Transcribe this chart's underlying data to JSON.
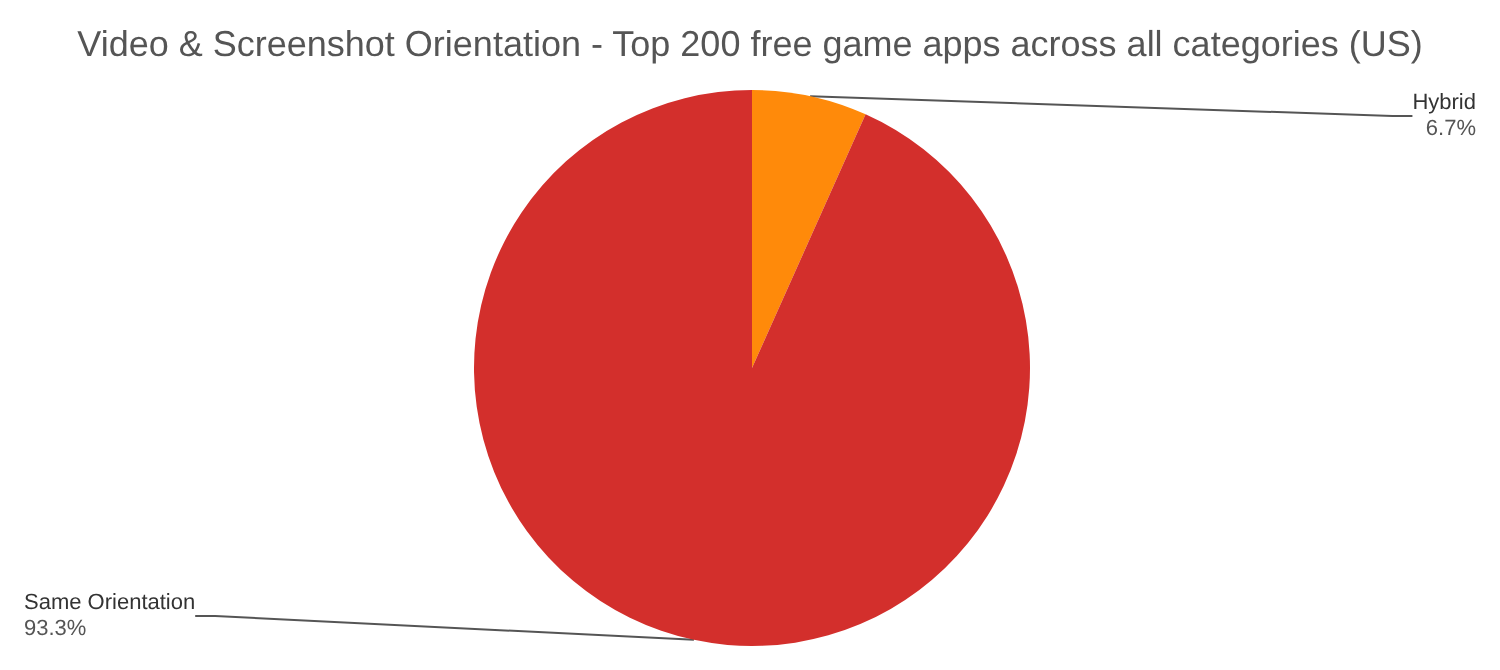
{
  "chart_data": {
    "type": "pie",
    "title": "Video & Screenshot Orientation - Top 200 free game apps across all categories (US)",
    "categories": [
      "Hybrid",
      "Same Orientation"
    ],
    "values": [
      6.7,
      93.3
    ],
    "colors": [
      "#ff8a0a",
      "#d32f2c"
    ],
    "value_labels": [
      "6.7%",
      "93.3%"
    ],
    "legend": false
  }
}
